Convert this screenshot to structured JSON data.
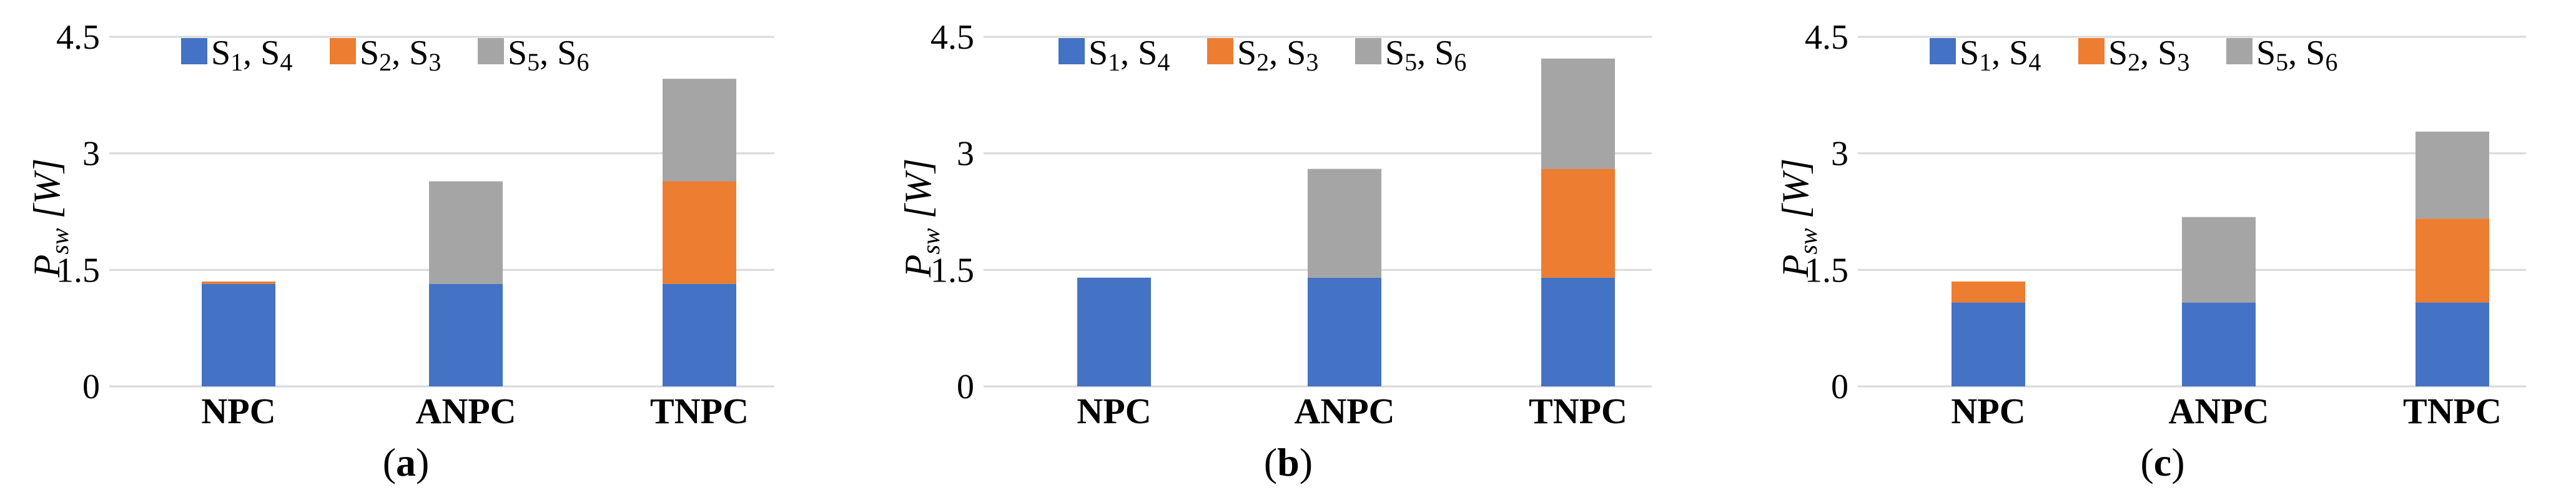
{
  "colors": {
    "S1_S4": "#4472c4",
    "S2_S3": "#ed7d31",
    "S5_S6": "#a5a5a5",
    "grid": "#d9d9d9"
  },
  "legend": [
    {
      "key": "S1_S4",
      "base1": "S",
      "sub1": "1",
      "sep": ", ",
      "base2": "S",
      "sub2": "4"
    },
    {
      "key": "S2_S3",
      "base1": "S",
      "sub1": "2",
      "sep": ", ",
      "base2": "S",
      "sub2": "3"
    },
    {
      "key": "S5_S6",
      "base1": "S",
      "sub1": "5",
      "sep": ", ",
      "base2": "S",
      "sub2": "6"
    }
  ],
  "chart_data": [
    {
      "type": "bar",
      "stacked": true,
      "panel": "a",
      "categories": [
        "NPC",
        "ANPC",
        "TNPC"
      ],
      "series": [
        {
          "name": "S1, S4",
          "key": "S1_S4",
          "values": [
            1.32,
            1.32,
            1.32
          ]
        },
        {
          "name": "S2, S3",
          "key": "S2_S3",
          "values": [
            0.03,
            0,
            1.32
          ]
        },
        {
          "name": "S5, S6",
          "key": "S5_S6",
          "values": [
            0,
            1.32,
            1.32
          ]
        }
      ],
      "ylabel_base": "P",
      "ylabel_sub": "sw",
      "ylabel_rest": " [W]",
      "ylim": [
        0,
        4.5
      ],
      "yticks": [
        "0",
        "1.5",
        "3",
        "4.5"
      ]
    },
    {
      "type": "bar",
      "stacked": true,
      "panel": "b",
      "categories": [
        "NPC",
        "ANPC",
        "TNPC"
      ],
      "series": [
        {
          "name": "S1, S4",
          "key": "S1_S4",
          "values": [
            1.4,
            1.4,
            1.4
          ]
        },
        {
          "name": "S2, S3",
          "key": "S2_S3",
          "values": [
            0,
            0,
            1.4
          ]
        },
        {
          "name": "S5, S6",
          "key": "S5_S6",
          "values": [
            0,
            1.4,
            1.42
          ]
        }
      ],
      "ylabel_base": "P",
      "ylabel_sub": "sw",
      "ylabel_rest": " [W]",
      "ylim": [
        0,
        4.5
      ],
      "yticks": [
        "0",
        "1.5",
        "3",
        "4.5"
      ]
    },
    {
      "type": "bar",
      "stacked": true,
      "panel": "c",
      "categories": [
        "NPC",
        "ANPC",
        "TNPC"
      ],
      "series": [
        {
          "name": "S1, S4",
          "key": "S1_S4",
          "values": [
            1.08,
            1.08,
            1.08
          ]
        },
        {
          "name": "S2, S3",
          "key": "S2_S3",
          "values": [
            0.27,
            0,
            1.08
          ]
        },
        {
          "name": "S5, S6",
          "key": "S5_S6",
          "values": [
            0,
            1.1,
            1.12
          ]
        }
      ],
      "ylabel_base": "P",
      "ylabel_sub": "sw",
      "ylabel_rest": " [W]",
      "ylim": [
        0,
        4.5
      ],
      "yticks": [
        "0",
        "1.5",
        "3",
        "4.5"
      ]
    }
  ]
}
